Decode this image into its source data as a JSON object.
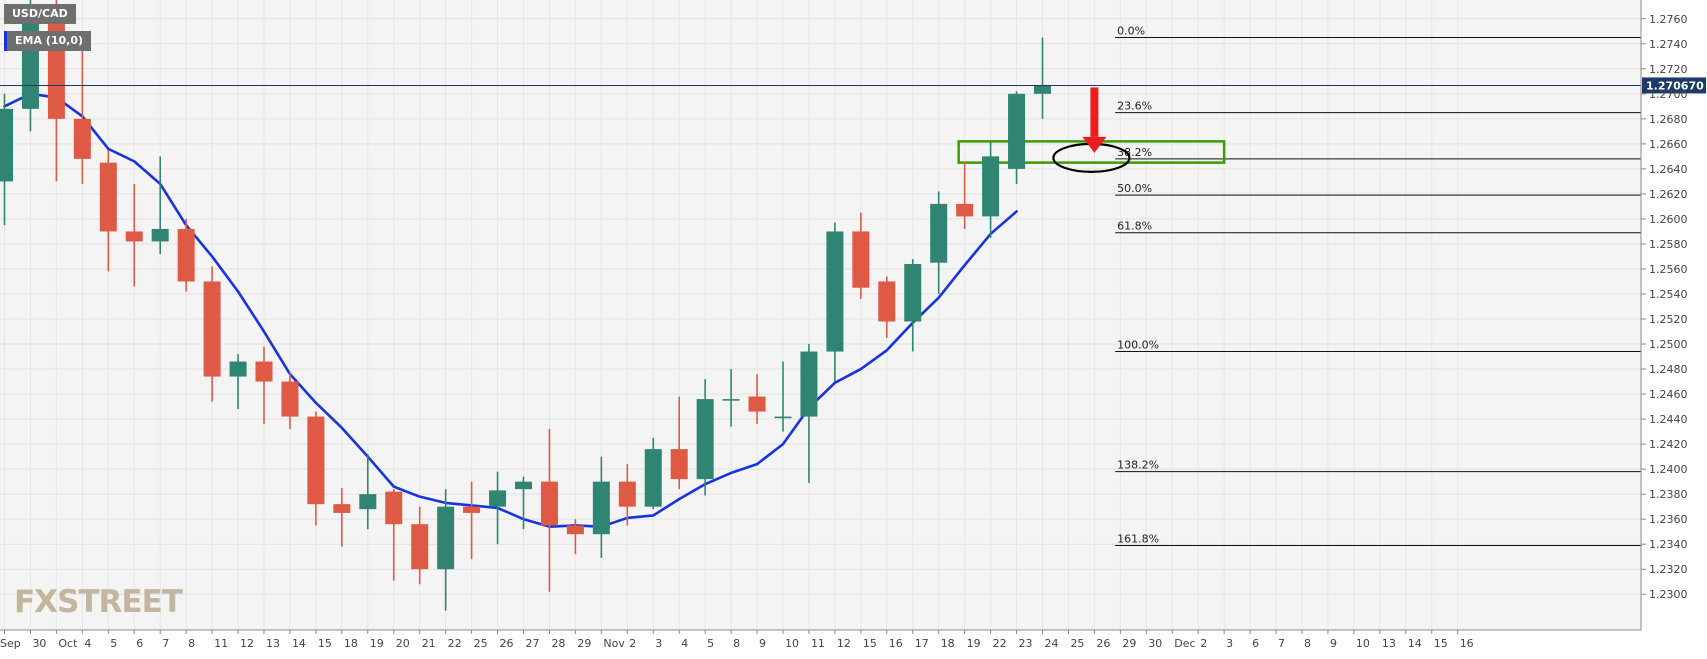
{
  "chart_data": {
    "type": "candlestick",
    "symbol": "USD/CAD",
    "indicator": "EMA (10,0)",
    "brand": "FXSTREET",
    "last_price": 1.27067,
    "last_price_label": "1.270670",
    "yrange": [
      1.2285,
      1.2775
    ],
    "yticks": [
      1.23,
      1.232,
      1.234,
      1.236,
      1.238,
      1.24,
      1.242,
      1.244,
      1.246,
      1.248,
      1.25,
      1.252,
      1.254,
      1.256,
      1.258,
      1.26,
      1.262,
      1.264,
      1.266,
      1.268,
      1.27,
      1.272,
      1.274,
      1.276
    ],
    "ytick_labels": [
      "1.2300",
      "1.2320",
      "1.2340",
      "1.2360",
      "1.2380",
      "1.2400",
      "1.2420",
      "1.2440",
      "1.2460",
      "1.2480",
      "1.2500",
      "1.2520",
      "1.2540",
      "1.2560",
      "1.2580",
      "1.2600",
      "1.2620",
      "1.2640",
      "1.2660",
      "1.2680",
      "1.2700",
      "1.2720",
      "1.2740",
      "1.2760"
    ],
    "xlabels": [
      "Sep",
      "30",
      "Oct",
      "4",
      "5",
      "6",
      "7",
      "8",
      "11",
      "12",
      "13",
      "14",
      "15",
      "18",
      "19",
      "20",
      "21",
      "22",
      "25",
      "26",
      "27",
      "28",
      "29",
      "Nov",
      "2",
      "3",
      "4",
      "5",
      "8",
      "9",
      "10",
      "11",
      "12",
      "15",
      "16",
      "17",
      "18",
      "19",
      "22",
      "23",
      "24",
      "25",
      "26",
      "29",
      "30",
      "Dec",
      "2",
      "3",
      "6",
      "7",
      "8",
      "9",
      "10",
      "13",
      "14",
      "15",
      "16"
    ],
    "candles": [
      {
        "o": 1.263,
        "h": 1.27,
        "l": 1.2595,
        "c": 1.2688
      },
      {
        "o": 1.2688,
        "h": 1.2775,
        "l": 1.267,
        "c": 1.2765
      },
      {
        "o": 1.2765,
        "h": 1.2775,
        "l": 1.263,
        "c": 1.268
      },
      {
        "o": 1.268,
        "h": 1.274,
        "l": 1.2628,
        "c": 1.2648
      },
      {
        "o": 1.2645,
        "h": 1.2655,
        "l": 1.2558,
        "c": 1.259
      },
      {
        "o": 1.259,
        "h": 1.2628,
        "l": 1.2546,
        "c": 1.2582
      },
      {
        "o": 1.2582,
        "h": 1.265,
        "l": 1.2572,
        "c": 1.2592
      },
      {
        "o": 1.2592,
        "h": 1.26,
        "l": 1.2542,
        "c": 1.255
      },
      {
        "o": 1.255,
        "h": 1.2562,
        "l": 1.2454,
        "c": 1.2474
      },
      {
        "o": 1.2474,
        "h": 1.2492,
        "l": 1.2448,
        "c": 1.2486
      },
      {
        "o": 1.2486,
        "h": 1.2498,
        "l": 1.2436,
        "c": 1.247
      },
      {
        "o": 1.247,
        "h": 1.2478,
        "l": 1.2432,
        "c": 1.2442
      },
      {
        "o": 1.2442,
        "h": 1.2446,
        "l": 1.2355,
        "c": 1.2372
      },
      {
        "o": 1.2372,
        "h": 1.2385,
        "l": 1.2338,
        "c": 1.2365
      },
      {
        "o": 1.2368,
        "h": 1.2412,
        "l": 1.2352,
        "c": 1.238
      },
      {
        "o": 1.2382,
        "h": 1.2384,
        "l": 1.2311,
        "c": 1.2356
      },
      {
        "o": 1.2356,
        "h": 1.237,
        "l": 1.2308,
        "c": 1.232
      },
      {
        "o": 1.232,
        "h": 1.2384,
        "l": 1.2287,
        "c": 1.237
      },
      {
        "o": 1.237,
        "h": 1.239,
        "l": 1.2328,
        "c": 1.2365
      },
      {
        "o": 1.237,
        "h": 1.2398,
        "l": 1.234,
        "c": 1.2383
      },
      {
        "o": 1.2384,
        "h": 1.2394,
        "l": 1.2352,
        "c": 1.239
      },
      {
        "o": 1.239,
        "h": 1.2432,
        "l": 1.2302,
        "c": 1.2355
      },
      {
        "o": 1.2355,
        "h": 1.236,
        "l": 1.2332,
        "c": 1.2348
      },
      {
        "o": 1.2348,
        "h": 1.241,
        "l": 1.2329,
        "c": 1.239
      },
      {
        "o": 1.239,
        "h": 1.2404,
        "l": 1.2355,
        "c": 1.237
      },
      {
        "o": 1.237,
        "h": 1.2425,
        "l": 1.2368,
        "c": 1.2416
      },
      {
        "o": 1.2416,
        "h": 1.2458,
        "l": 1.2384,
        "c": 1.2392
      },
      {
        "o": 1.2392,
        "h": 1.2472,
        "l": 1.2379,
        "c": 1.2456
      },
      {
        "o": 1.2456,
        "h": 1.248,
        "l": 1.2434,
        "c": 1.2456
      },
      {
        "o": 1.2458,
        "h": 1.2476,
        "l": 1.2436,
        "c": 1.2446
      },
      {
        "o": 1.2442,
        "h": 1.2486,
        "l": 1.243,
        "c": 1.2442
      },
      {
        "o": 1.2442,
        "h": 1.25,
        "l": 1.2389,
        "c": 1.2494
      },
      {
        "o": 1.2494,
        "h": 1.2597,
        "l": 1.247,
        "c": 1.259
      },
      {
        "o": 1.259,
        "h": 1.2605,
        "l": 1.2536,
        "c": 1.2545
      },
      {
        "o": 1.255,
        "h": 1.2554,
        "l": 1.2505,
        "c": 1.2518
      },
      {
        "o": 1.2518,
        "h": 1.2568,
        "l": 1.2494,
        "c": 1.2564
      },
      {
        "o": 1.2565,
        "h": 1.2622,
        "l": 1.254,
        "c": 1.2612
      },
      {
        "o": 1.2612,
        "h": 1.2646,
        "l": 1.2592,
        "c": 1.2602
      },
      {
        "o": 1.2602,
        "h": 1.2662,
        "l": 1.2585,
        "c": 1.265
      },
      {
        "o": 1.264,
        "h": 1.2702,
        "l": 1.2628,
        "c": 1.27
      },
      {
        "o": 1.27,
        "h": 1.2745,
        "l": 1.268,
        "c": 1.2707
      }
    ],
    "ema": [
      1.269,
      1.27,
      1.2697,
      1.2682,
      1.2656,
      1.2646,
      1.2628,
      1.2595,
      1.257,
      1.2542,
      1.251,
      1.2476,
      1.2453,
      1.2433,
      1.241,
      1.2386,
      1.2378,
      1.2373,
      1.2371,
      1.2369,
      1.236,
      1.2354,
      1.2355,
      1.2354,
      1.2361,
      1.2363,
      1.2376,
      1.2388,
      1.2397,
      1.2404,
      1.242,
      1.2449,
      1.2469,
      1.248,
      1.2495,
      1.2517,
      1.2537,
      1.2563,
      1.2588,
      1.2606
    ],
    "fibonacci": [
      {
        "label": "0.0%",
        "value": 1.2745
      },
      {
        "label": "23.6%",
        "value": 1.2685
      },
      {
        "label": "38.2%",
        "value": 1.2648
      },
      {
        "label": "50.0%",
        "value": 1.2619
      },
      {
        "label": "61.8%",
        "value": 1.2589
      },
      {
        "label": "100.0%",
        "value": 1.2494
      },
      {
        "label": "138.2%",
        "value": 1.2398
      },
      {
        "label": "161.8%",
        "value": 1.2339
      }
    ],
    "zone": {
      "low": 1.2645,
      "high": 1.2662,
      "from_index": 37,
      "to_index": 47
    },
    "arrow_index": 42,
    "colors": {
      "up": "#2f8571",
      "down": "#de5a45",
      "ema": "#1733e0",
      "zone": "#3e9a07",
      "arrow": "#ee1d1d",
      "price_tag": "#1b3a66",
      "price_line": "#1b3a66"
    },
    "grid": true,
    "legend_position": "top-left"
  }
}
